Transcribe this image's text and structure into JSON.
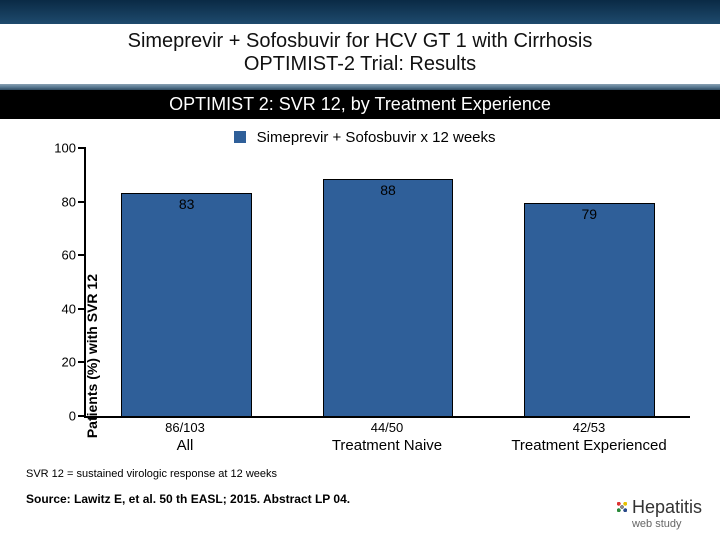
{
  "header": {
    "title_line1": "Simeprevir + Sofosbuvir for HCV GT 1 with Cirrhosis",
    "title_line2": "OPTIMIST-2 Trial: Results"
  },
  "subtitle": "OPTIMIST 2: SVR 12, by Treatment Experience",
  "chart": {
    "type": "bar",
    "legend": {
      "swatch_color": "#2f5f99",
      "label": "Simeprevir + Sofosbuvir x 12 weeks"
    },
    "y_axis": {
      "label": "Patients (%) with SVR 12",
      "min": 0,
      "max": 100,
      "tick_step": 20,
      "ticks": [
        0,
        20,
        40,
        60,
        80,
        100
      ]
    },
    "bar_color": "#2f5f99",
    "value_label_fontsize": 14,
    "categories": [
      {
        "label": "All",
        "value": 83,
        "ratio": "86/103"
      },
      {
        "label": "Treatment Naive",
        "value": 88,
        "ratio": "44/50"
      },
      {
        "label": "Treatment Experienced",
        "value": 79,
        "ratio": "42/53"
      }
    ]
  },
  "footnote": "SVR 12 = sustained virologic response at 12 weeks",
  "source": "Source: Lawitz E, et al. 50 th EASL; 2015. Abstract LP 04.",
  "brand": {
    "name": "Hepatitis",
    "sub": "web study"
  }
}
